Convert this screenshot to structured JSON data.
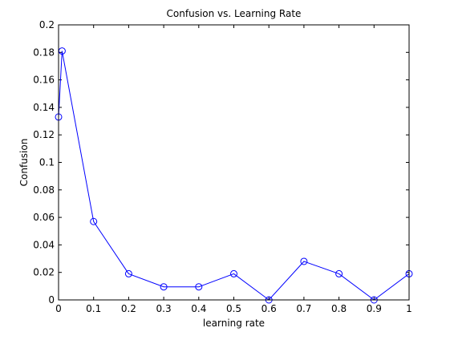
{
  "chart_data": {
    "type": "line",
    "title": "Confusion vs. Learning Rate",
    "xlabel": "learning rate",
    "ylabel": "Confusion",
    "xlim": [
      0,
      1
    ],
    "ylim": [
      0,
      0.2
    ],
    "x_ticks": [
      "0",
      "0.1",
      "0.2",
      "0.3",
      "0.4",
      "0.5",
      "0.6",
      "0.7",
      "0.8",
      "0.9",
      "1"
    ],
    "y_ticks": [
      "0",
      "0.02",
      "0.04",
      "0.06",
      "0.08",
      "0.1",
      "0.12",
      "0.14",
      "0.16",
      "0.18",
      "0.2"
    ],
    "grid": false,
    "marker": "circle",
    "series": [
      {
        "color": "#0000ff",
        "x": [
          0,
          0.01,
          0.1,
          0.2,
          0.3,
          0.4,
          0.5,
          0.6,
          0.7,
          0.8,
          0.9,
          1.0
        ],
        "y": [
          0.133,
          0.181,
          0.057,
          0.019,
          0.0095,
          0.0095,
          0.019,
          0.0,
          0.028,
          0.019,
          0.0,
          0.019
        ]
      }
    ]
  }
}
